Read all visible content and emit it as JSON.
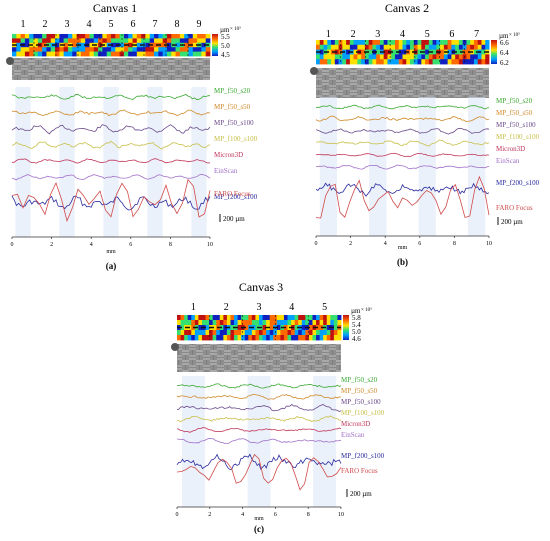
{
  "figure": {
    "panels": [
      {
        "id": "a",
        "title": "Canvas 1",
        "caption": "(a)",
        "colorbar": {
          "unit": "µm",
          "exponent": "× 10³",
          "ticks": [
            "5.5",
            "5.0",
            "4.5"
          ]
        },
        "region_labels": [
          "1",
          "2",
          "3",
          "4",
          "5",
          "6",
          "7",
          "8",
          "9"
        ],
        "scale_bar": "200 µm",
        "x_ticks": [
          "0",
          "2",
          "4",
          "6",
          "8",
          "10"
        ],
        "x_unit": "mm"
      },
      {
        "id": "b",
        "title": "Canvas 2",
        "caption": "(b)",
        "colorbar": {
          "unit": "µm",
          "exponent": "× 10³",
          "ticks": [
            "6.6",
            "6.4",
            "6.2"
          ]
        },
        "region_labels": [
          "1",
          "2",
          "3",
          "4",
          "5",
          "6",
          "7"
        ],
        "scale_bar": "200 µm",
        "x_ticks": [
          "0",
          "2",
          "4",
          "6",
          "8",
          "10"
        ],
        "x_unit": "mm"
      },
      {
        "id": "c",
        "title": "Canvas 3",
        "caption": "(c)",
        "colorbar": {
          "unit": "µm",
          "exponent": "× 10³",
          "ticks": [
            "5.8",
            "5.4",
            "5.0",
            "4.6"
          ]
        },
        "region_labels": [
          "1",
          "2",
          "3",
          "4",
          "5"
        ],
        "scale_bar": "200 µm",
        "x_ticks": [
          "0",
          "2",
          "4",
          "6",
          "8",
          "10"
        ],
        "x_unit": "mm"
      }
    ]
  },
  "chart_data": [
    {
      "type": "line",
      "title": "Canvas 1",
      "xlabel": "mm",
      "ylabel": "",
      "xlim": [
        0,
        10
      ],
      "x_ticks": [
        0,
        2,
        4,
        6,
        8,
        10
      ],
      "region_count": 9,
      "series": [
        {
          "name": "MP_f50_s20",
          "color": "#3aa832",
          "amplitude": 0.25,
          "roughness": 1.0,
          "seed": 11
        },
        {
          "name": "MP_f50_s50",
          "color": "#d08a2a",
          "amplitude": 0.3,
          "roughness": 0.9,
          "seed": 12
        },
        {
          "name": "MP_f50_s100",
          "color": "#6a4a8c",
          "amplitude": 0.45,
          "roughness": 0.7,
          "seed": 13
        },
        {
          "name": "MP_f100_s100",
          "color": "#c8c04a",
          "amplitude": 0.4,
          "roughness": 0.7,
          "seed": 14
        },
        {
          "name": "Micron3D",
          "color": "#c0365a",
          "amplitude": 0.25,
          "roughness": 0.5,
          "seed": 15
        },
        {
          "name": "EinScan",
          "color": "#a070c8",
          "amplitude": 0.3,
          "roughness": 0.5,
          "seed": 16
        },
        {
          "name": "MP_f200_s100",
          "color": "#2a2aa0",
          "amplitude": 0.7,
          "roughness": 1.0,
          "seed": 17
        },
        {
          "name": "FARO Focus",
          "color": "#d04a4a",
          "amplitude": 1.4,
          "roughness": 0.6,
          "seed": 18
        }
      ]
    },
    {
      "type": "line",
      "title": "Canvas 2",
      "xlabel": "mm",
      "ylabel": "",
      "xlim": [
        0,
        10
      ],
      "x_ticks": [
        0,
        2,
        4,
        6,
        8,
        10
      ],
      "region_count": 7,
      "series": [
        {
          "name": "MP_f50_s20",
          "color": "#3aa832",
          "amplitude": 0.2,
          "roughness": 1.0,
          "seed": 21
        },
        {
          "name": "MP_f50_s50",
          "color": "#d08a2a",
          "amplitude": 0.25,
          "roughness": 0.9,
          "seed": 22
        },
        {
          "name": "MP_f50_s100",
          "color": "#6a4a8c",
          "amplitude": 0.3,
          "roughness": 0.7,
          "seed": 23
        },
        {
          "name": "MP_f100_s100",
          "color": "#c8c04a",
          "amplitude": 0.3,
          "roughness": 0.7,
          "seed": 24
        },
        {
          "name": "Micron3D",
          "color": "#c0365a",
          "amplitude": 0.2,
          "roughness": 0.5,
          "seed": 25
        },
        {
          "name": "EinScan",
          "color": "#a070c8",
          "amplitude": 0.25,
          "roughness": 0.5,
          "seed": 26
        },
        {
          "name": "MP_f200_s100",
          "color": "#2a2aa0",
          "amplitude": 0.6,
          "roughness": 1.0,
          "seed": 27
        },
        {
          "name": "FARO Focus",
          "color": "#d04a4a",
          "amplitude": 1.3,
          "roughness": 0.6,
          "seed": 28
        }
      ]
    },
    {
      "type": "line",
      "title": "Canvas 3",
      "xlabel": "mm",
      "ylabel": "",
      "xlim": [
        0,
        10
      ],
      "x_ticks": [
        0,
        2,
        4,
        6,
        8,
        10
      ],
      "region_count": 5,
      "series": [
        {
          "name": "MP_f50_s20",
          "color": "#3aa832",
          "amplitude": 0.2,
          "roughness": 1.0,
          "seed": 31
        },
        {
          "name": "MP_f50_s50",
          "color": "#d08a2a",
          "amplitude": 0.25,
          "roughness": 0.9,
          "seed": 32
        },
        {
          "name": "MP_f50_s100",
          "color": "#6a4a8c",
          "amplitude": 0.35,
          "roughness": 0.7,
          "seed": 33
        },
        {
          "name": "MP_f100_s100",
          "color": "#c8c04a",
          "amplitude": 0.3,
          "roughness": 0.7,
          "seed": 34
        },
        {
          "name": "Micron3D",
          "color": "#c0365a",
          "amplitude": 0.25,
          "roughness": 0.5,
          "seed": 35
        },
        {
          "name": "EinScan",
          "color": "#a070c8",
          "amplitude": 0.3,
          "roughness": 0.5,
          "seed": 36
        },
        {
          "name": "MP_f200_s100",
          "color": "#2a2aa0",
          "amplitude": 0.7,
          "roughness": 1.0,
          "seed": 37
        },
        {
          "name": "FARO Focus",
          "color": "#d04a4a",
          "amplitude": 1.2,
          "roughness": 0.6,
          "seed": 38
        }
      ]
    }
  ]
}
